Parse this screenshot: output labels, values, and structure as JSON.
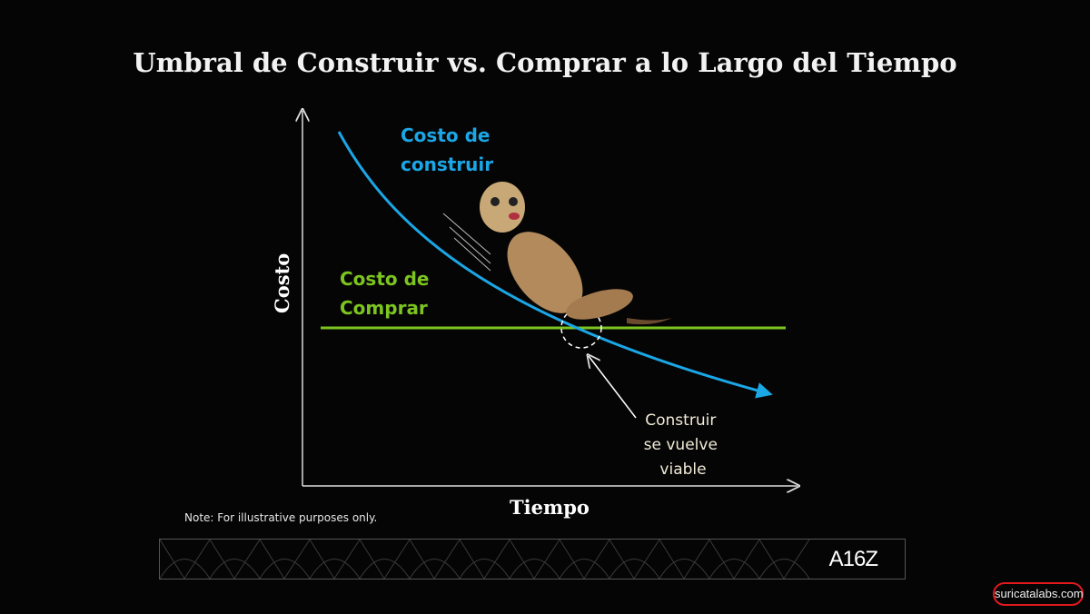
{
  "title": "Umbral de Construir vs. Comprar a lo Largo del Tiempo",
  "diagram": {
    "y_axis_label": "Costo",
    "x_axis_label": "Tiempo",
    "build_cost_label_line1": "Costo de",
    "build_cost_label_line2": "construir",
    "buy_cost_label_line1": "Costo de",
    "buy_cost_label_line2": "Comprar",
    "annotation_line1": "Construir",
    "annotation_line2": "se vuelve",
    "annotation_line3": "viable",
    "colors": {
      "build": "#1ba6e6",
      "buy": "#7cc41f",
      "background": "#050505"
    },
    "illustration": "meerkat sliding down build-cost curve"
  },
  "note": "Note: For illustrative purposes only.",
  "banner_logo": "A16Z",
  "watermark": "suricatalabs.com"
}
